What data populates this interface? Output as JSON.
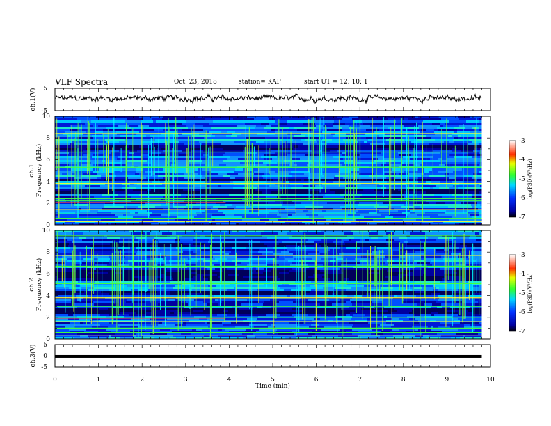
{
  "header": {
    "title": "VLF Spectra",
    "date": "Oct. 23, 2018",
    "station": "station= KAP",
    "start": "start  UT  =   12: 10: 1"
  },
  "chart_data": [
    {
      "type": "line",
      "panel": "waveform-ch1",
      "ylabel": "ch.1(V)",
      "ylim": [
        -5,
        5
      ],
      "ytick_labels": [
        "5",
        "-5"
      ],
      "xlim": [
        0,
        10
      ],
      "baseline": 0.5,
      "amplitude": 1.6
    },
    {
      "type": "heatmap",
      "panel": "spectrogram-ch1",
      "ylabel_line1": "ch.1",
      "ylabel_line2": "Frequency (kHz)",
      "ylim": [
        0,
        10
      ],
      "ytick_labels": [
        "10",
        "8",
        "6",
        "4",
        "2",
        "0"
      ],
      "xlim": [
        0,
        9.8
      ],
      "colorbar": {
        "label": "log(PSD)(V²/Hz)",
        "range": [
          -7,
          -3
        ],
        "tick_labels": [
          "-3",
          "-4",
          "-5",
          "-6",
          "-7"
        ]
      },
      "bands_khz": [
        0.3,
        0.6,
        1.0,
        1.4,
        2.2,
        2.4,
        3.8,
        5.3,
        6.7,
        8.4
      ],
      "dark_bands_khz": [
        [
          3.0,
          3.4
        ],
        [
          4.1,
          4.4
        ],
        [
          7.1,
          7.4
        ]
      ]
    },
    {
      "type": "heatmap",
      "panel": "spectrogram-ch2",
      "ylabel_line1": "ch.2",
      "ylabel_line2": "Frequency (kHz)",
      "ylim": [
        0,
        10
      ],
      "ytick_labels": [
        "10",
        "8",
        "6",
        "4",
        "2",
        "0"
      ],
      "xlim": [
        0,
        9.8
      ],
      "colorbar": {
        "label": "log(PSD)(V²/Hz)",
        "range": [
          -7,
          -3
        ],
        "tick_labels": [
          "-3",
          "-4",
          "-5",
          "-6",
          "-7"
        ]
      },
      "bands_khz": [
        0.3,
        0.6,
        1.0,
        1.6,
        2.0,
        3.0,
        3.8,
        5.1,
        6.7,
        7.7,
        9.5
      ],
      "dark_bands_khz": [
        [
          2.4,
          2.9
        ],
        [
          4.1,
          4.6
        ],
        [
          5.5,
          6.5
        ],
        [
          8.5,
          9.0
        ]
      ]
    },
    {
      "type": "line",
      "panel": "waveform-ch3",
      "ylabel": "ch.3(V)",
      "ylim": [
        -5,
        5
      ],
      "ytick_labels": [
        "5",
        "0",
        "-5"
      ],
      "xlim": [
        0,
        9.8
      ],
      "value": -0.3,
      "xlabel": "Time  (min)",
      "xtick_labels": [
        "0",
        "1",
        "2",
        "3",
        "4",
        "5",
        "6",
        "7",
        "8",
        "9",
        "10"
      ]
    }
  ]
}
